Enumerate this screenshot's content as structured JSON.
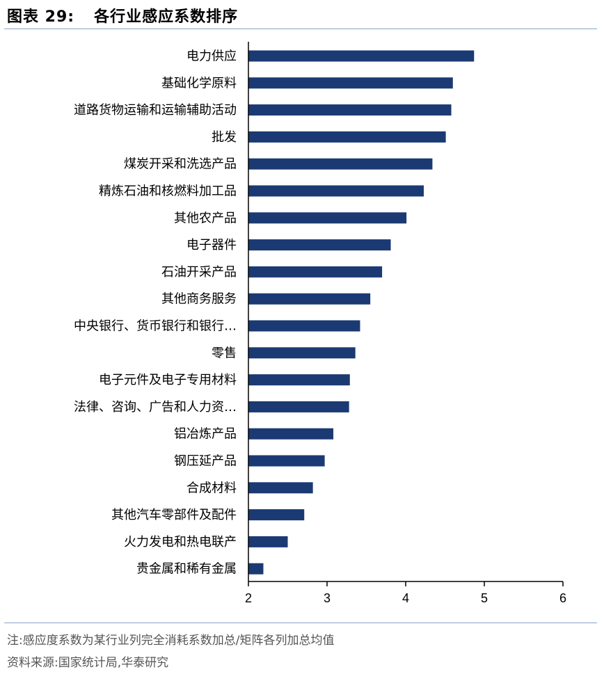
{
  "header": {
    "figure_label": "图表 29:",
    "title": "各行业感应系数排序"
  },
  "footer": {
    "note": "注:感应度系数为某行业列完全消耗系数加总/矩阵各列加总均值",
    "source": "资料来源:国家统计局,华泰研究"
  },
  "colors": {
    "bar": "#1b3a73",
    "axis": "#000000",
    "rule": "#8aa4c8"
  },
  "chart_data": {
    "type": "bar",
    "orientation": "horizontal",
    "title": "各行业感应系数排序",
    "xlim": [
      2,
      6
    ],
    "xticks": [
      2,
      3,
      4,
      5,
      6
    ],
    "grid": false,
    "categories": [
      "电力供应",
      "基础化学原料",
      "道路货物运输和运输辅助活动",
      "批发",
      "煤炭开采和洗选产品",
      "精炼石油和核燃料加工品",
      "其他农产品",
      "电子器件",
      "石油开采产品",
      "其他商务服务",
      "中央银行、货币银行和银行…",
      "零售",
      "电子元件及电子专用材料",
      "法律、咨询、广告和人力资…",
      "铝冶炼产品",
      "钢压延产品",
      "合成材料",
      "其他汽车零部件及配件",
      "火力发电和热电联产",
      "贵金属和稀有金属"
    ],
    "values": [
      4.87,
      4.6,
      4.58,
      4.51,
      4.34,
      4.23,
      4.01,
      3.81,
      3.7,
      3.55,
      3.42,
      3.36,
      3.29,
      3.28,
      3.08,
      2.97,
      2.82,
      2.71,
      2.5,
      2.19
    ]
  }
}
